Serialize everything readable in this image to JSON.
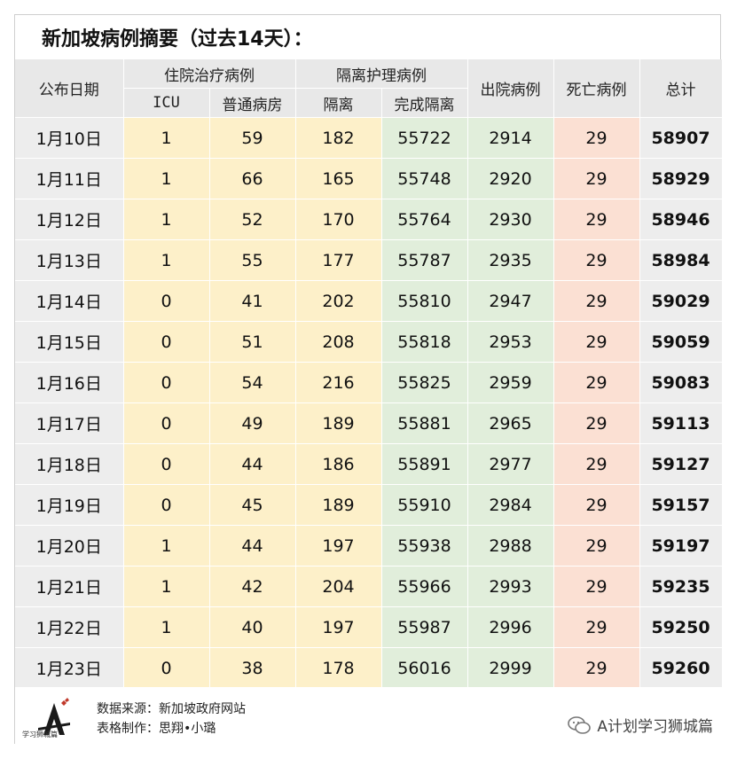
{
  "title": "新加坡病例摘要（过去14天）：",
  "headers": {
    "date": "公布日期",
    "hospital_group": "住院治疗病例",
    "icu": "ICU",
    "general_ward": "普通病房",
    "isolation_group": "隔离护理病例",
    "isolation": "隔离",
    "completed_isolation": "完成隔离",
    "discharged": "出院病例",
    "deaths": "死亡病例",
    "total": "总计"
  },
  "rows": [
    {
      "date": "1月10日",
      "icu": "1",
      "ward": "59",
      "iso": "182",
      "done": "55722",
      "disc": "2914",
      "death": "29",
      "total": "58907"
    },
    {
      "date": "1月11日",
      "icu": "1",
      "ward": "66",
      "iso": "165",
      "done": "55748",
      "disc": "2920",
      "death": "29",
      "total": "58929"
    },
    {
      "date": "1月12日",
      "icu": "1",
      "ward": "52",
      "iso": "170",
      "done": "55764",
      "disc": "2930",
      "death": "29",
      "total": "58946"
    },
    {
      "date": "1月13日",
      "icu": "1",
      "ward": "55",
      "iso": "177",
      "done": "55787",
      "disc": "2935",
      "death": "29",
      "total": "58984"
    },
    {
      "date": "1月14日",
      "icu": "0",
      "ward": "41",
      "iso": "202",
      "done": "55810",
      "disc": "2947",
      "death": "29",
      "total": "59029"
    },
    {
      "date": "1月15日",
      "icu": "0",
      "ward": "51",
      "iso": "208",
      "done": "55818",
      "disc": "2953",
      "death": "29",
      "total": "59059"
    },
    {
      "date": "1月16日",
      "icu": "0",
      "ward": "54",
      "iso": "216",
      "done": "55825",
      "disc": "2959",
      "death": "29",
      "total": "59083"
    },
    {
      "date": "1月17日",
      "icu": "0",
      "ward": "49",
      "iso": "189",
      "done": "55881",
      "disc": "2965",
      "death": "29",
      "total": "59113"
    },
    {
      "date": "1月18日",
      "icu": "0",
      "ward": "44",
      "iso": "186",
      "done": "55891",
      "disc": "2977",
      "death": "29",
      "total": "59127"
    },
    {
      "date": "1月19日",
      "icu": "0",
      "ward": "45",
      "iso": "189",
      "done": "55910",
      "disc": "2984",
      "death": "29",
      "total": "59157"
    },
    {
      "date": "1月20日",
      "icu": "1",
      "ward": "44",
      "iso": "197",
      "done": "55938",
      "disc": "2988",
      "death": "29",
      "total": "59197"
    },
    {
      "date": "1月21日",
      "icu": "1",
      "ward": "42",
      "iso": "204",
      "done": "55966",
      "disc": "2993",
      "death": "29",
      "total": "59235"
    },
    {
      "date": "1月22日",
      "icu": "1",
      "ward": "40",
      "iso": "197",
      "done": "55987",
      "disc": "2996",
      "death": "29",
      "total": "59250"
    },
    {
      "date": "1月23日",
      "icu": "0",
      "ward": "38",
      "iso": "178",
      "done": "56016",
      "disc": "2999",
      "death": "29",
      "total": "59260"
    }
  ],
  "footer": {
    "source": "数据来源：新加坡政府网站",
    "maker": "表格制作：思翔•小璐",
    "logo_text": "学习狮城篇",
    "brand": "A计划学习狮城篇"
  },
  "colors": {
    "header_bg": "#e8e8e8",
    "hospital_bg": "#fdf0c9",
    "isolation_done_bg": "#e1eedb",
    "deaths_bg": "#fbe0d3",
    "date_total_bg": "#ededed"
  }
}
